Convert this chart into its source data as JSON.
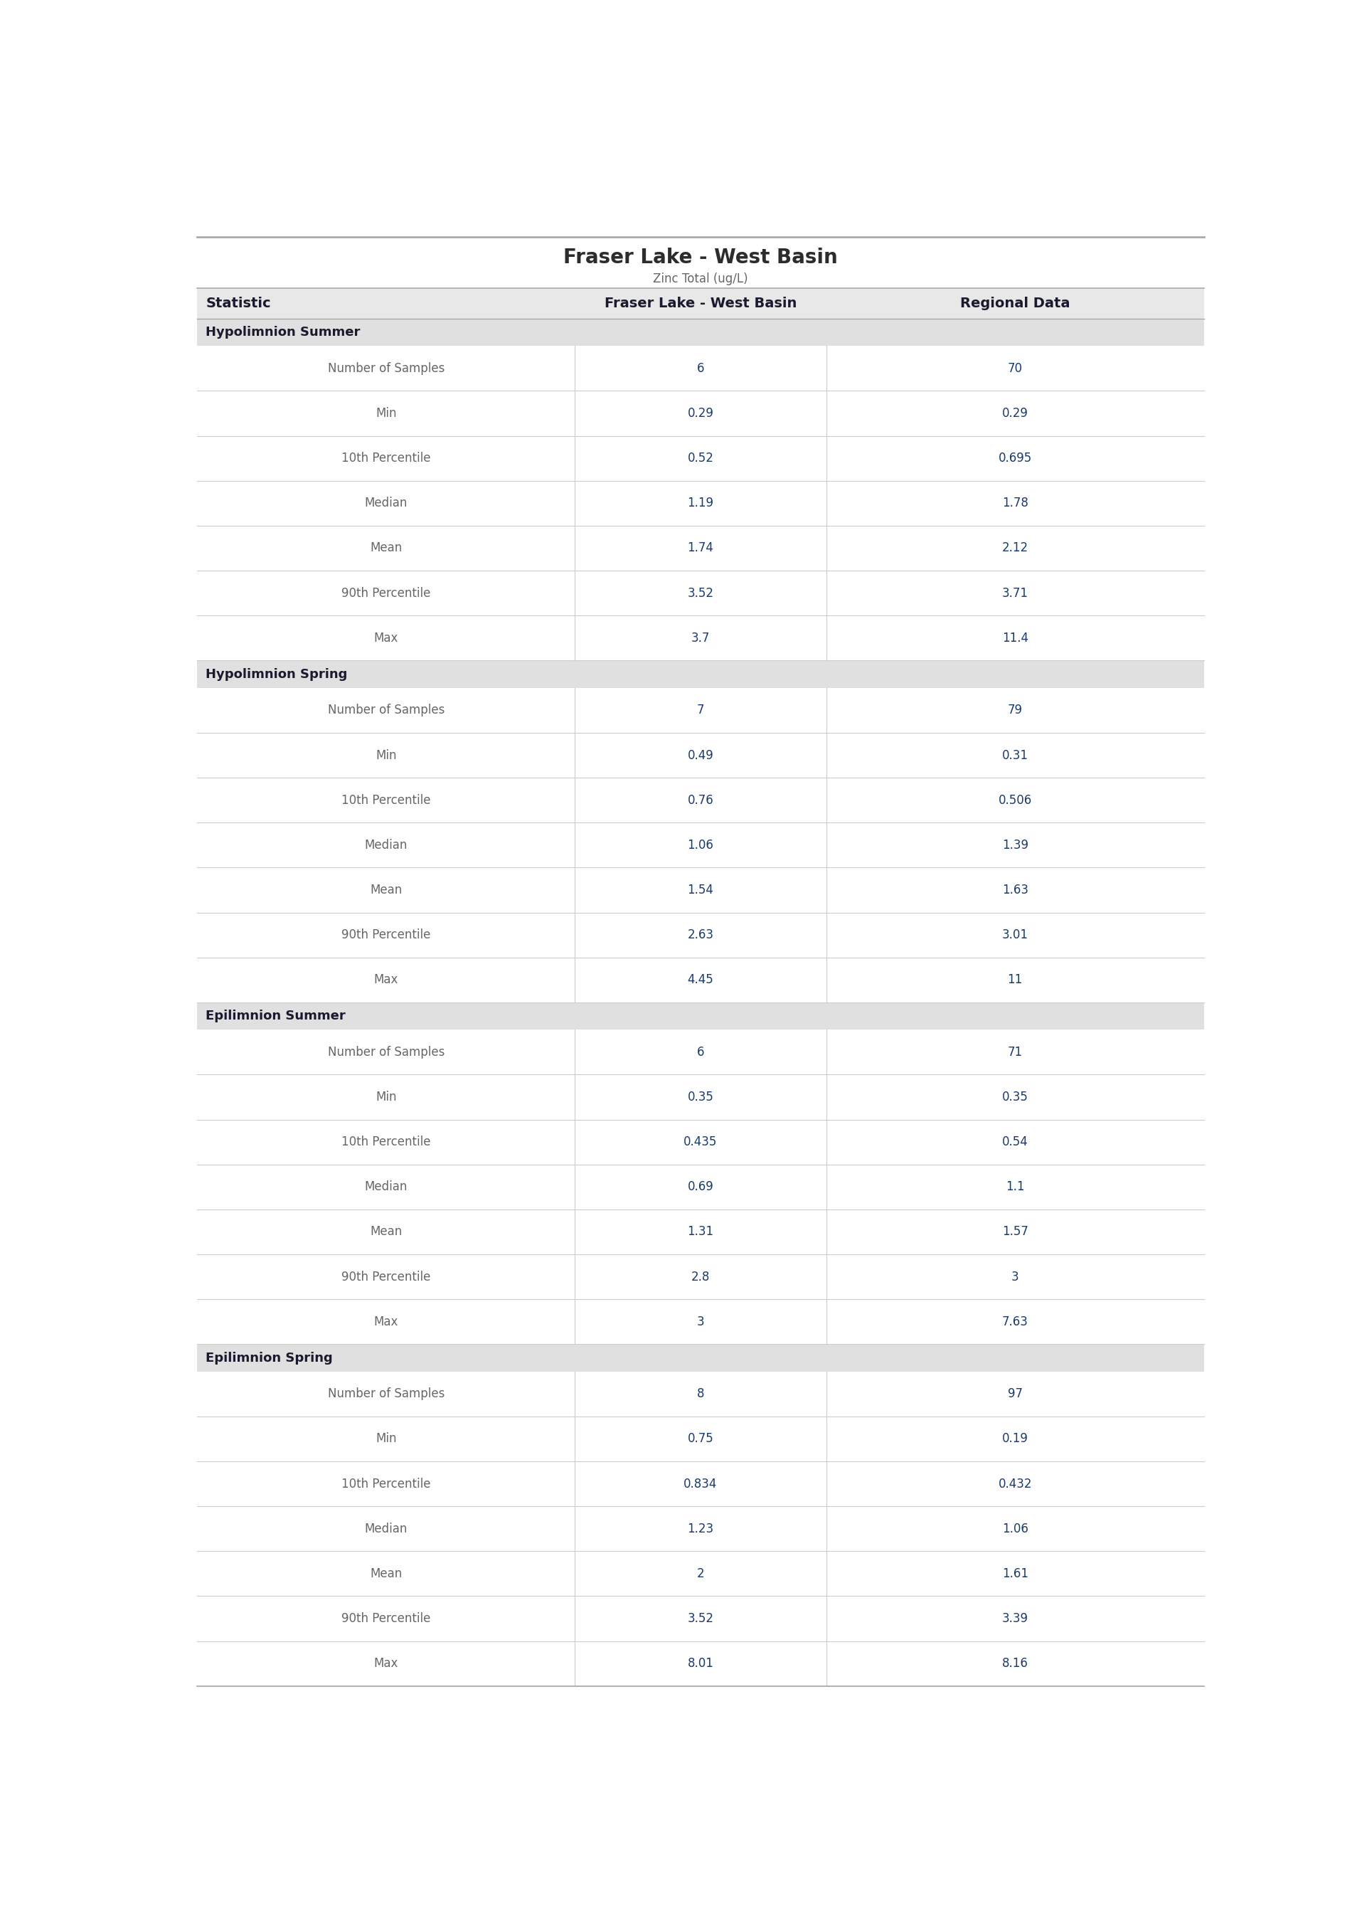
{
  "title": "Fraser Lake - West Basin",
  "subtitle": "Zinc Total (ug/L)",
  "col_headers": [
    "Statistic",
    "Fraser Lake - West Basin",
    "Regional Data"
  ],
  "sections": [
    {
      "name": "Hypolimnion Summer",
      "rows": [
        [
          "Number of Samples",
          "6",
          "70"
        ],
        [
          "Min",
          "0.29",
          "0.29"
        ],
        [
          "10th Percentile",
          "0.52",
          "0.695"
        ],
        [
          "Median",
          "1.19",
          "1.78"
        ],
        [
          "Mean",
          "1.74",
          "2.12"
        ],
        [
          "90th Percentile",
          "3.52",
          "3.71"
        ],
        [
          "Max",
          "3.7",
          "11.4"
        ]
      ]
    },
    {
      "name": "Hypolimnion Spring",
      "rows": [
        [
          "Number of Samples",
          "7",
          "79"
        ],
        [
          "Min",
          "0.49",
          "0.31"
        ],
        [
          "10th Percentile",
          "0.76",
          "0.506"
        ],
        [
          "Median",
          "1.06",
          "1.39"
        ],
        [
          "Mean",
          "1.54",
          "1.63"
        ],
        [
          "90th Percentile",
          "2.63",
          "3.01"
        ],
        [
          "Max",
          "4.45",
          "11"
        ]
      ]
    },
    {
      "name": "Epilimnion Summer",
      "rows": [
        [
          "Number of Samples",
          "6",
          "71"
        ],
        [
          "Min",
          "0.35",
          "0.35"
        ],
        [
          "10th Percentile",
          "0.435",
          "0.54"
        ],
        [
          "Median",
          "0.69",
          "1.1"
        ],
        [
          "Mean",
          "1.31",
          "1.57"
        ],
        [
          "90th Percentile",
          "2.8",
          "3"
        ],
        [
          "Max",
          "3",
          "7.63"
        ]
      ]
    },
    {
      "name": "Epilimnion Spring",
      "rows": [
        [
          "Number of Samples",
          "8",
          "97"
        ],
        [
          "Min",
          "0.75",
          "0.19"
        ],
        [
          "10th Percentile",
          "0.834",
          "0.432"
        ],
        [
          "Median",
          "1.23",
          "1.06"
        ],
        [
          "Mean",
          "2",
          "1.61"
        ],
        [
          "90th Percentile",
          "3.52",
          "3.39"
        ],
        [
          "Max",
          "8.01",
          "8.16"
        ]
      ]
    }
  ],
  "title_color": "#2c2c2c",
  "subtitle_color": "#666666",
  "header_bg": "#e8e8e8",
  "section_bg": "#e0e0e0",
  "row_bg_white": "#ffffff",
  "row_bg_light": "#f7f7f7",
  "header_text_color": "#1a1a2e",
  "section_text_color": "#1a1a2e",
  "statistic_text_color": "#666666",
  "value_text_color": "#1a3a6b",
  "border_color": "#aaaaaa",
  "divider_color": "#cccccc",
  "title_fontsize": 20,
  "subtitle_fontsize": 12,
  "header_fontsize": 14,
  "section_fontsize": 13,
  "row_fontsize": 12
}
